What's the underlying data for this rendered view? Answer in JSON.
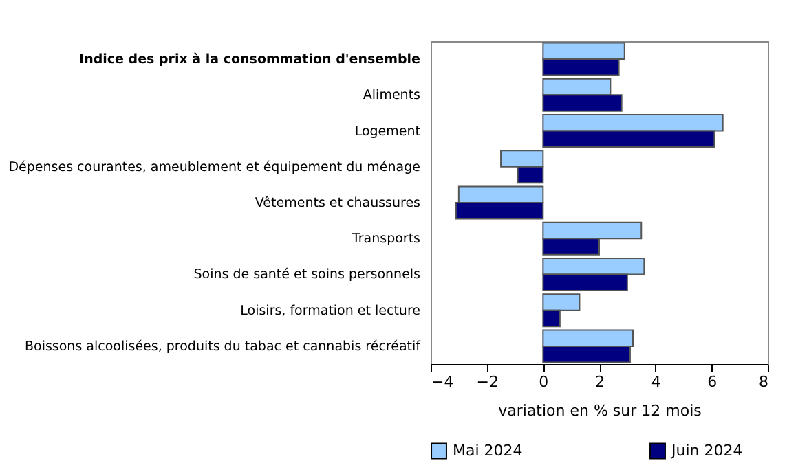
{
  "chart_data": {
    "type": "bar",
    "orientation": "horizontal",
    "xlabel": "variation en % sur 12 mois",
    "categories": [
      "Indice des prix à la consommation d'ensemble",
      "Aliments",
      "Logement",
      "Dépenses courantes, ameublement et équipement du ménage",
      "Vêtements et chaussures",
      "Transports",
      "Soins de santé et soins personnels",
      "Loisirs, formation et lecture",
      "Boissons alcoolisées, produits du tabac et cannabis récréatif"
    ],
    "series": [
      {
        "name": "Mai 2024",
        "color": "#99ccff",
        "values": [
          2.9,
          2.4,
          6.4,
          -1.5,
          -3.0,
          3.5,
          3.6,
          1.3,
          3.2
        ]
      },
      {
        "name": "Juin 2024",
        "color": "#000080",
        "values": [
          2.7,
          2.8,
          6.1,
          -0.9,
          -3.1,
          2.0,
          3.0,
          0.6,
          3.1
        ]
      }
    ],
    "xlim": [
      -4,
      8
    ],
    "xticks": [
      -4,
      -2,
      0,
      2,
      4,
      6,
      8
    ],
    "grid": false,
    "legend": "bottom"
  }
}
